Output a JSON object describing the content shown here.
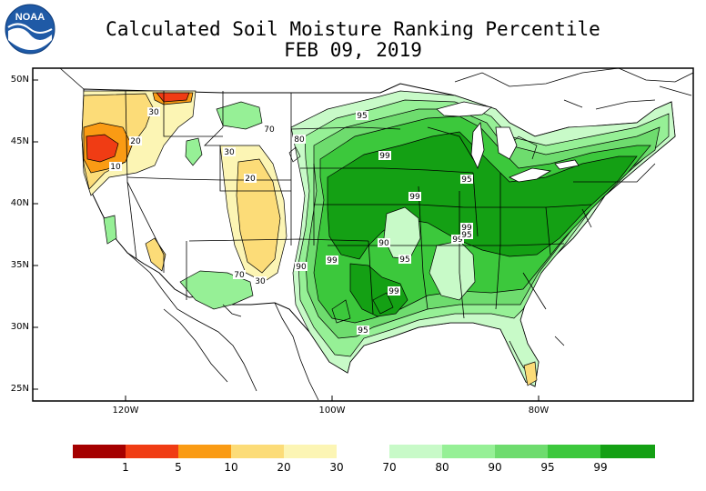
{
  "title": "Calculated Soil Moisture Ranking Percentile",
  "date": "FEB 09, 2019",
  "logo": {
    "text": "NOAA"
  },
  "latitude_labels": [
    "50N",
    "45N",
    "40N",
    "35N",
    "30N",
    "25N"
  ],
  "longitude_labels": [
    "120W",
    "100W",
    "80W"
  ],
  "contour_labels": [
    "30",
    "20",
    "10",
    "70",
    "80",
    "95",
    "99",
    "30",
    "20",
    "99",
    "95",
    "99",
    "99",
    "90",
    "95",
    "90",
    "99",
    "95",
    "70",
    "30",
    "99",
    "95"
  ],
  "legend": {
    "swatches": [
      {
        "color": "#a50000"
      },
      {
        "color": "#f03c14"
      },
      {
        "color": "#fa9b14"
      },
      {
        "color": "#fcdc78"
      },
      {
        "color": "#fcf5b4"
      },
      {
        "color": "#c8fac8"
      },
      {
        "color": "#96f096"
      },
      {
        "color": "#6edc6e"
      },
      {
        "color": "#3cc83c"
      },
      {
        "color": "#14a014"
      }
    ],
    "labels": [
      "1",
      "5",
      "10",
      "20",
      "30",
      "70",
      "80",
      "90",
      "95",
      "99"
    ]
  }
}
